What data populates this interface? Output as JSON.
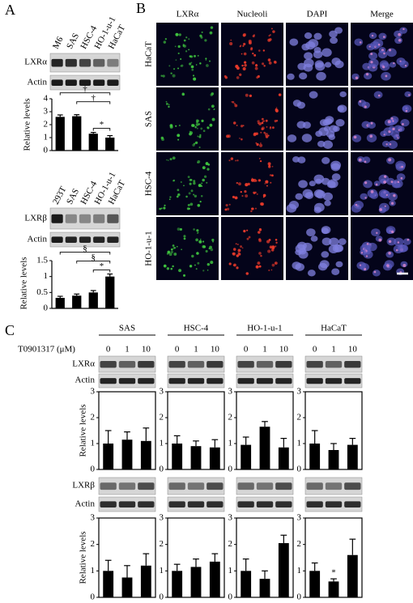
{
  "panel_a": {
    "label": "A",
    "ylabel": "Relative levels",
    "blot1": {
      "lanes": [
        "M6",
        "SAS",
        "HSC-4",
        "HO-1-u-1",
        "HaCaT"
      ],
      "rows": [
        "LXRα",
        "Actin"
      ]
    },
    "chart1": {
      "type": "bar",
      "values": [
        2.6,
        2.65,
        1.3,
        1.0
      ],
      "errors": [
        0.15,
        0.12,
        0.1,
        0.15
      ],
      "ylim": [
        0,
        4
      ],
      "yticks": [
        0,
        1,
        2,
        3,
        4
      ],
      "annotations": [
        {
          "from": 0,
          "to": 3,
          "label": "†"
        },
        {
          "from": 1,
          "to": 3,
          "label": "†"
        },
        {
          "from": 2,
          "to": 3,
          "label": "*"
        }
      ]
    },
    "blot2": {
      "lanes": [
        "293T",
        "SAS",
        "HSC-4",
        "HO-1-u-1",
        "HaCaT"
      ],
      "rows": [
        "LXRβ",
        "Actin"
      ]
    },
    "chart2": {
      "type": "bar",
      "values": [
        0.33,
        0.4,
        0.5,
        1.0
      ],
      "errors": [
        0.05,
        0.05,
        0.06,
        0.08
      ],
      "ylim": [
        0,
        1.5
      ],
      "yticks": [
        0,
        0.5,
        1,
        1.5
      ],
      "annotations": [
        {
          "from": 0,
          "to": 3,
          "label": "§"
        },
        {
          "from": 1,
          "to": 3,
          "label": "§"
        },
        {
          "from": 2,
          "to": 3,
          "label": "*"
        }
      ]
    }
  },
  "panel_b": {
    "label": "B",
    "columns": [
      "LXRα",
      "Nucleoli",
      "DAPI",
      "Merge"
    ],
    "rows": [
      "HaCaT",
      "SAS",
      "HSC-4",
      "HO-1-u-1"
    ]
  },
  "panel_c": {
    "label": "C",
    "treatment": "T0901317 (μM)",
    "ylabel": "Relative levels",
    "rows_alpha": [
      "LXRα",
      "Actin"
    ],
    "rows_beta": [
      "LXRβ",
      "Actin"
    ],
    "ylim": [
      0,
      3
    ],
    "yticks": [
      0,
      1,
      2,
      3
    ],
    "groups": [
      {
        "name": "SAS",
        "doses": [
          "0",
          "1",
          "10"
        ],
        "alpha": {
          "type": "bar",
          "values": [
            1.0,
            1.15,
            1.1
          ],
          "errors": [
            0.5,
            0.3,
            0.5
          ]
        },
        "beta": {
          "type": "bar",
          "values": [
            1.0,
            0.75,
            1.2
          ],
          "errors": [
            0.4,
            0.45,
            0.45
          ]
        }
      },
      {
        "name": "HSC-4",
        "doses": [
          "0",
          "1",
          "10"
        ],
        "alpha": {
          "type": "bar",
          "values": [
            1.0,
            0.9,
            0.85
          ],
          "errors": [
            0.3,
            0.2,
            0.3
          ]
        },
        "beta": {
          "type": "bar",
          "values": [
            1.0,
            1.15,
            1.35
          ],
          "errors": [
            0.25,
            0.3,
            0.3
          ]
        }
      },
      {
        "name": "HO-1-u-1",
        "doses": [
          "0",
          "1",
          "10"
        ],
        "alpha": {
          "type": "bar",
          "values": [
            0.95,
            1.65,
            0.85
          ],
          "errors": [
            0.3,
            0.2,
            0.35
          ]
        },
        "beta": {
          "type": "bar",
          "values": [
            1.0,
            0.7,
            2.05
          ],
          "errors": [
            0.45,
            0.3,
            0.3
          ]
        }
      },
      {
        "name": "HaCaT",
        "doses": [
          "0",
          "1",
          "10"
        ],
        "alpha": {
          "type": "bar",
          "values": [
            1.0,
            0.75,
            0.95
          ],
          "errors": [
            0.5,
            0.25,
            0.25
          ]
        },
        "beta": {
          "type": "bar",
          "values": [
            1.0,
            0.6,
            1.6
          ],
          "errors": [
            0.3,
            0.1,
            0.6
          ],
          "point_annotations": [
            {
              "index": 1,
              "label": "*"
            }
          ]
        }
      }
    ]
  }
}
